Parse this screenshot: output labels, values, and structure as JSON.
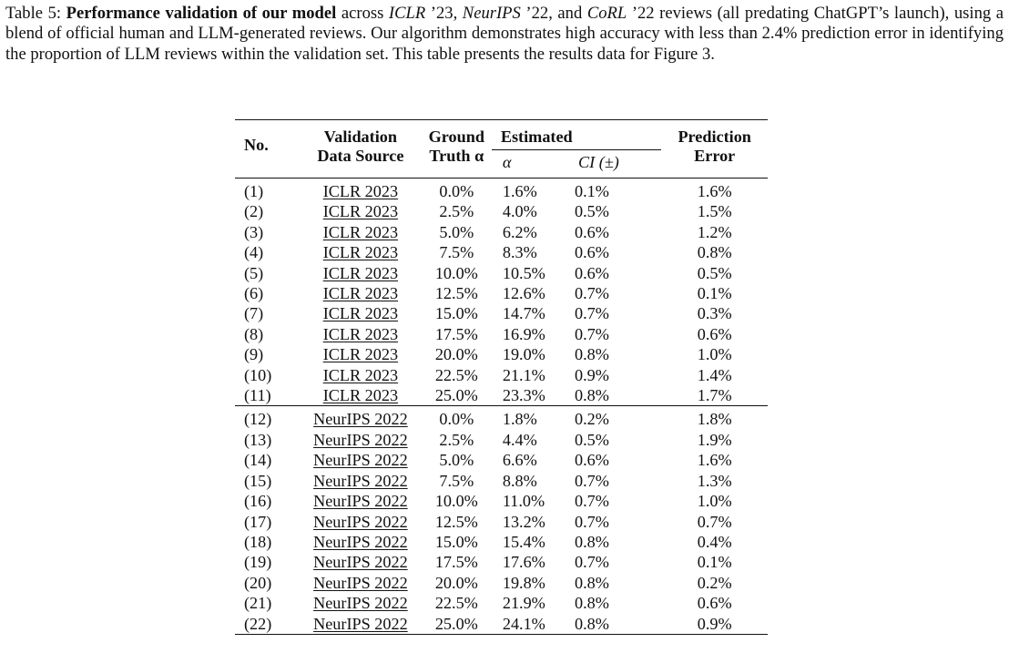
{
  "caption": {
    "label": "Table 5: ",
    "bold": "Performance validation of our model",
    "t1": " across ",
    "i1": "ICLR",
    "t2": " ’23, ",
    "i2": "NeurIPS",
    "t3": " ’22, and ",
    "i3": "CoRL",
    "t4": " ’22 reviews (all predating ChatGPT’s launch), using a blend of official human and LLM-generated reviews. Our algorithm demonstrates high accuracy with less than 2.4% prediction error in identifying the proportion of LLM reviews within the validation set. This table presents the results data for Figure ",
    "fig_ref": "3",
    "t5": "."
  },
  "table": {
    "headers": {
      "no": "No.",
      "source_l1": "Validation",
      "source_l2": "Data Source",
      "gt_l1": "Ground",
      "gt_l2": "Truth α",
      "estimated": "Estimated",
      "alpha": "α",
      "ci": "CI (±)",
      "err_l1": "Prediction",
      "err_l2": "Error"
    },
    "groups": [
      {
        "rows": [
          {
            "no": "(1)",
            "source": "ICLR 2023",
            "gt": "0.0%",
            "alpha": "1.6%",
            "ci": "0.1%",
            "err": "1.6%"
          },
          {
            "no": "(2)",
            "source": "ICLR 2023",
            "gt": "2.5%",
            "alpha": "4.0%",
            "ci": "0.5%",
            "err": "1.5%"
          },
          {
            "no": "(3)",
            "source": "ICLR 2023",
            "gt": "5.0%",
            "alpha": "6.2%",
            "ci": "0.6%",
            "err": "1.2%"
          },
          {
            "no": "(4)",
            "source": "ICLR 2023",
            "gt": "7.5%",
            "alpha": "8.3%",
            "ci": "0.6%",
            "err": "0.8%"
          },
          {
            "no": "(5)",
            "source": "ICLR 2023",
            "gt": "10.0%",
            "alpha": "10.5%",
            "ci": "0.6%",
            "err": "0.5%"
          },
          {
            "no": "(6)",
            "source": "ICLR 2023",
            "gt": "12.5%",
            "alpha": "12.6%",
            "ci": "0.7%",
            "err": "0.1%"
          },
          {
            "no": "(7)",
            "source": "ICLR 2023",
            "gt": "15.0%",
            "alpha": "14.7%",
            "ci": "0.7%",
            "err": "0.3%"
          },
          {
            "no": "(8)",
            "source": "ICLR 2023",
            "gt": "17.5%",
            "alpha": "16.9%",
            "ci": "0.7%",
            "err": "0.6%"
          },
          {
            "no": "(9)",
            "source": "ICLR 2023",
            "gt": "20.0%",
            "alpha": "19.0%",
            "ci": "0.8%",
            "err": "1.0%"
          },
          {
            "no": "(10)",
            "source": "ICLR 2023",
            "gt": "22.5%",
            "alpha": "21.1%",
            "ci": "0.9%",
            "err": "1.4%"
          },
          {
            "no": "(11)",
            "source": "ICLR 2023",
            "gt": "25.0%",
            "alpha": "23.3%",
            "ci": "0.8%",
            "err": "1.7%"
          }
        ]
      },
      {
        "rows": [
          {
            "no": "(12)",
            "source": "NeurIPS 2022",
            "gt": "0.0%",
            "alpha": "1.8%",
            "ci": "0.2%",
            "err": "1.8%"
          },
          {
            "no": "(13)",
            "source": "NeurIPS 2022",
            "gt": "2.5%",
            "alpha": "4.4%",
            "ci": "0.5%",
            "err": "1.9%"
          },
          {
            "no": "(14)",
            "source": "NeurIPS 2022",
            "gt": "5.0%",
            "alpha": "6.6%",
            "ci": "0.6%",
            "err": "1.6%"
          },
          {
            "no": "(15)",
            "source": "NeurIPS 2022",
            "gt": "7.5%",
            "alpha": "8.8%",
            "ci": "0.7%",
            "err": "1.3%"
          },
          {
            "no": "(16)",
            "source": "NeurIPS 2022",
            "gt": "10.0%",
            "alpha": "11.0%",
            "ci": "0.7%",
            "err": "1.0%"
          },
          {
            "no": "(17)",
            "source": "NeurIPS 2022",
            "gt": "12.5%",
            "alpha": "13.2%",
            "ci": "0.7%",
            "err": "0.7%"
          },
          {
            "no": "(18)",
            "source": "NeurIPS 2022",
            "gt": "15.0%",
            "alpha": "15.4%",
            "ci": "0.8%",
            "err": "0.4%"
          },
          {
            "no": "(19)",
            "source": "NeurIPS 2022",
            "gt": "17.5%",
            "alpha": "17.6%",
            "ci": "0.7%",
            "err": "0.1%"
          },
          {
            "no": "(20)",
            "source": "NeurIPS 2022",
            "gt": "20.0%",
            "alpha": "19.8%",
            "ci": "0.8%",
            "err": "0.2%"
          },
          {
            "no": "(21)",
            "source": "NeurIPS 2022",
            "gt": "22.5%",
            "alpha": "21.9%",
            "ci": "0.8%",
            "err": "0.6%"
          },
          {
            "no": "(22)",
            "source": "NeurIPS 2022",
            "gt": "25.0%",
            "alpha": "24.1%",
            "ci": "0.8%",
            "err": "0.9%"
          }
        ]
      }
    ]
  }
}
